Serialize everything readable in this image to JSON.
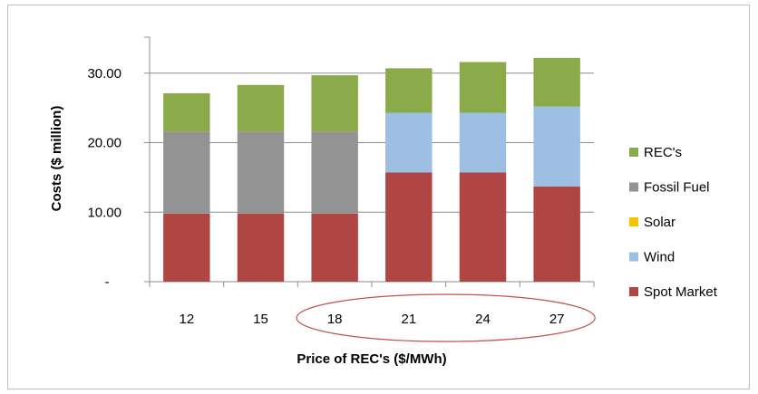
{
  "chart_data": {
    "type": "bar",
    "stacked": true,
    "categories": [
      "12",
      "15",
      "18",
      "21",
      "24",
      "27"
    ],
    "series": [
      {
        "name": "Spot Market",
        "color": "#b04644",
        "values": [
          9.8,
          9.8,
          9.8,
          15.7,
          15.7,
          13.7
        ]
      },
      {
        "name": "Wind",
        "color": "#9dbfe3",
        "values": [
          0,
          0,
          0,
          8.6,
          8.6,
          11.5
        ]
      },
      {
        "name": "Solar",
        "color": "#f5c400",
        "values": [
          0,
          0,
          0,
          0,
          0,
          0
        ]
      },
      {
        "name": "Fossil Fuel",
        "color": "#939393",
        "values": [
          11.8,
          11.8,
          11.8,
          0,
          0,
          0
        ]
      },
      {
        "name": "REC's",
        "color": "#8bab4b",
        "values": [
          5.5,
          6.7,
          8.1,
          6.4,
          7.3,
          7.0
        ]
      }
    ],
    "xlabel": "Price of REC's ($/MWh)",
    "ylabel": "Costs ($ million)",
    "ylim": [
      0,
      40
    ],
    "yticks": [
      0,
      10,
      20,
      30
    ],
    "ytick_labels": [
      "-",
      "10.00",
      "20.00",
      "30.00"
    ],
    "grid": true,
    "legend_position": "right",
    "legend_order": [
      "REC's",
      "Fossil Fuel",
      "Solar",
      "Wind",
      "Spot Market"
    ],
    "annotation": {
      "type": "ellipse",
      "color": "#c0504d",
      "spans_categories": [
        "18",
        "27"
      ]
    }
  }
}
